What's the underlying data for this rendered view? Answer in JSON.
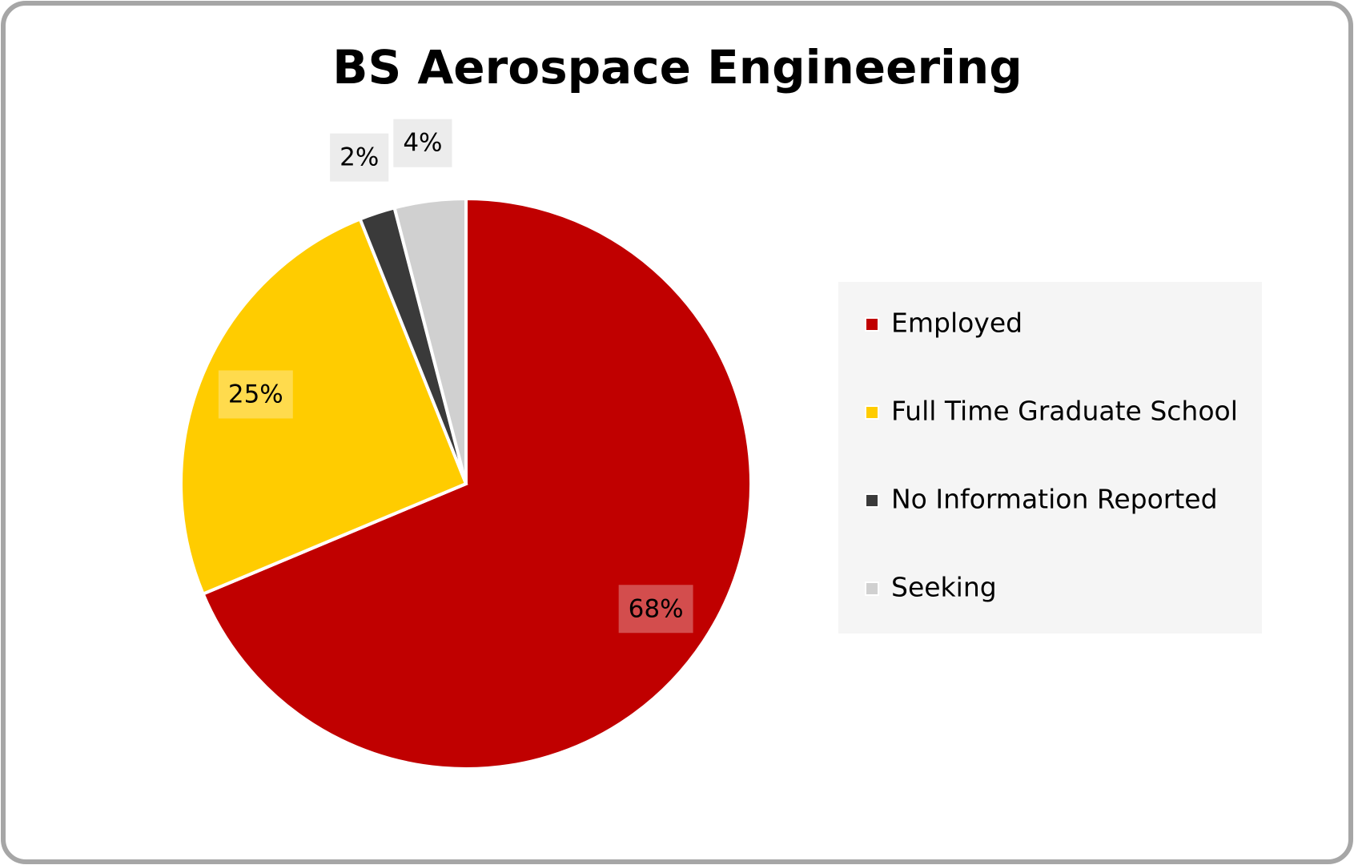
{
  "chart_data": {
    "type": "pie",
    "title": "BS Aerospace Engineering",
    "categories": [
      "Employed",
      "Full Time Graduate School",
      "No Information Reported",
      "Seeking"
    ],
    "values": [
      68,
      25,
      2,
      4
    ],
    "value_labels": [
      "68%",
      "25%",
      "2%",
      "4%"
    ],
    "colors": [
      "#c00000",
      "#ffcc00",
      "#3a3a3a",
      "#d0d0d0"
    ],
    "legend": "right"
  }
}
